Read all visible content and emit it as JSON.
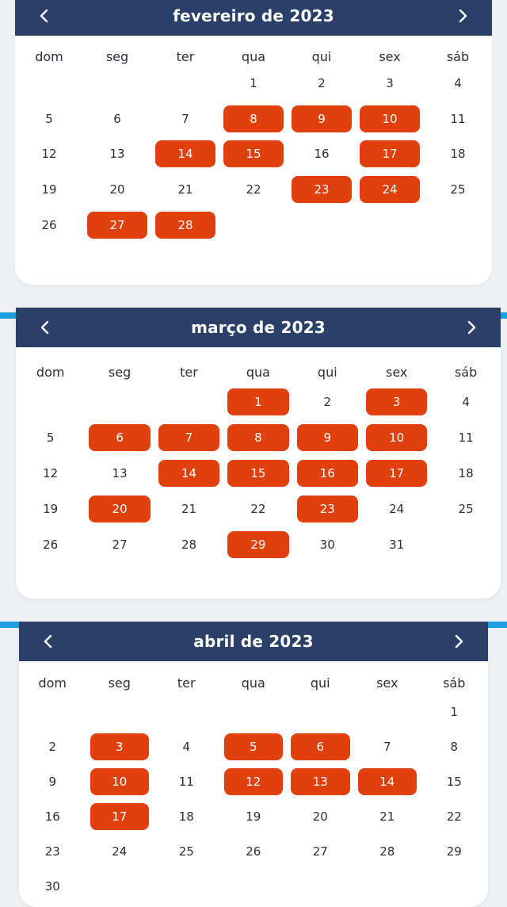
{
  "weekdays": [
    "dom",
    "seg",
    "ter",
    "qua",
    "qui",
    "sex",
    "sáb"
  ],
  "colors": {
    "header": "#2b4068",
    "highlight": "#e13f0c",
    "accent": "#1ea0e0"
  },
  "icons": {
    "prev": "chevron-left-icon",
    "next": "chevron-right-icon"
  },
  "calendars": [
    {
      "title": "fevereiro de 2023",
      "first_weekday": 3,
      "days_in_month": 28,
      "highlighted": [
        8,
        9,
        10,
        14,
        15,
        17,
        23,
        24,
        27,
        28
      ]
    },
    {
      "title": "março de 2023",
      "first_weekday": 3,
      "days_in_month": 31,
      "highlighted": [
        1,
        3,
        6,
        7,
        8,
        9,
        10,
        14,
        15,
        16,
        17,
        20,
        23,
        29
      ]
    },
    {
      "title": "abril de 2023",
      "first_weekday": 6,
      "days_in_month": 30,
      "highlighted": [
        3,
        5,
        6,
        10,
        12,
        13,
        14,
        17
      ]
    }
  ]
}
